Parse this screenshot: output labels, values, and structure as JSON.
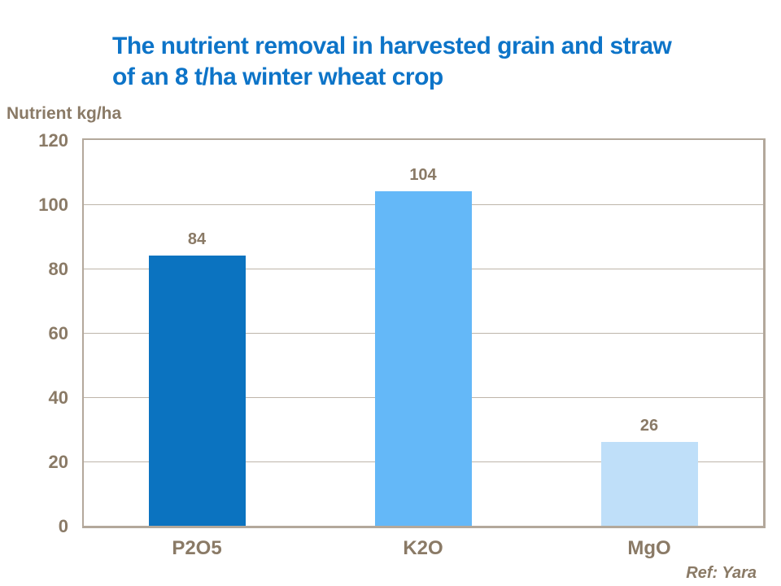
{
  "slide": {
    "title_line1": "The nutrient removal in harvested grain and straw",
    "title_line2": "of an 8 t/ha winter wheat crop",
    "y_axis_title": "Nutrient kg/ha",
    "reference": "Ref: Yara"
  },
  "colors": {
    "title_blue": "#0d74c8",
    "text_brown": "#8a7a66",
    "axis_line": "#b3a89b",
    "bar_p2o5": "#0b73c0",
    "bar_k2o": "#64b8f8",
    "bar_mgo": "#bfdff9"
  },
  "chart_data": {
    "type": "bar",
    "title": "The nutrient removal in harvested grain and straw of an 8 t/ha winter wheat crop",
    "categories": [
      "P2O5",
      "K2O",
      "MgO"
    ],
    "values": [
      84,
      104,
      26
    ],
    "data_labels": [
      "84",
      "104",
      "26"
    ],
    "bar_colors": [
      "#0b73c0",
      "#64b8f8",
      "#bfdff9"
    ],
    "xlabel": "",
    "ylabel": "Nutrient kg/ha",
    "ylim": [
      0,
      120
    ],
    "ytick_interval": 20,
    "yticks": [
      0,
      20,
      40,
      60,
      80,
      100,
      120
    ],
    "grid": true,
    "legend": false,
    "annotation": "Ref: Yara"
  }
}
